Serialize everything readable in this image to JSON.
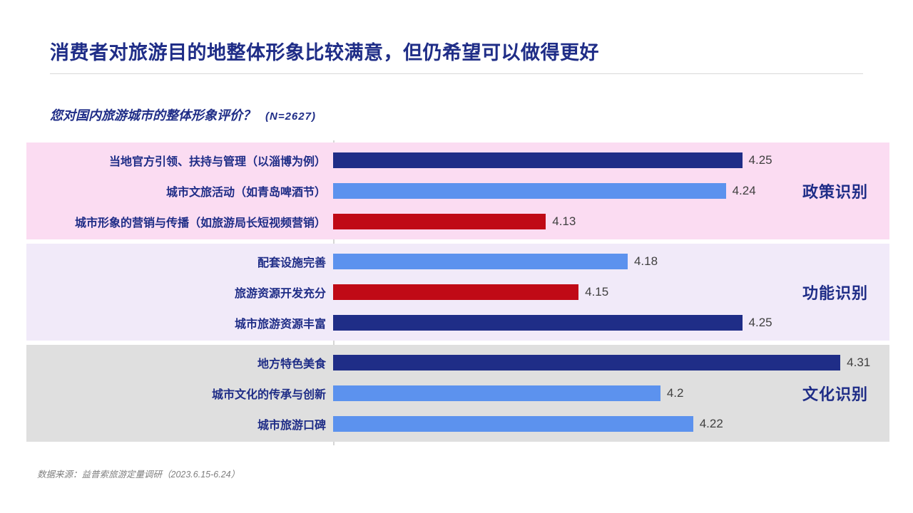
{
  "page": {
    "title": "消费者对旅游目的地整体形象比较满意，但仍希望可以做得更好",
    "question": "您对国内旅游城市的整体形象评价？",
    "sample_note": "(N=2627)",
    "source": "数据来源：益普索旅游定量调研（2023.6.15-6.24）"
  },
  "colors": {
    "navy": "#1f2d87",
    "light_blue": "#5c92ee",
    "red": "#c00a16",
    "band_pink": "#fbdcf2",
    "band_lavender": "#f1eaf9",
    "band_gray": "#dfdfdf"
  },
  "chart_data": {
    "type": "bar",
    "orientation": "horizontal",
    "xlim": [
      4.0,
      4.34
    ],
    "grid": false,
    "value_labels": true,
    "groups": [
      {
        "name": "政策识别",
        "band_color_key": "band_pink",
        "items": [
          {
            "label": "当地官方引领、扶持与管理（以淄博为例）",
            "value": 4.25,
            "color_key": "navy"
          },
          {
            "label": "城市文旅活动（如青岛啤酒节）",
            "value": 4.24,
            "color_key": "light_blue"
          },
          {
            "label": "城市形象的营销与传播（如旅游局长短视频营销）",
            "value": 4.13,
            "color_key": "red"
          }
        ]
      },
      {
        "name": "功能识别",
        "band_color_key": "band_lavender",
        "items": [
          {
            "label": "配套设施完善",
            "value": 4.18,
            "color_key": "light_blue"
          },
          {
            "label": "旅游资源开发充分",
            "value": 4.15,
            "color_key": "red"
          },
          {
            "label": "城市旅游资源丰富",
            "value": 4.25,
            "color_key": "navy"
          }
        ]
      },
      {
        "name": "文化识别",
        "band_color_key": "band_gray",
        "items": [
          {
            "label": "地方特色美食",
            "value": 4.31,
            "color_key": "navy"
          },
          {
            "label": "城市文化的传承与创新",
            "value": 4.2,
            "color_key": "light_blue"
          },
          {
            "label": "城市旅游口碑",
            "value": 4.22,
            "color_key": "light_blue"
          }
        ]
      }
    ]
  }
}
